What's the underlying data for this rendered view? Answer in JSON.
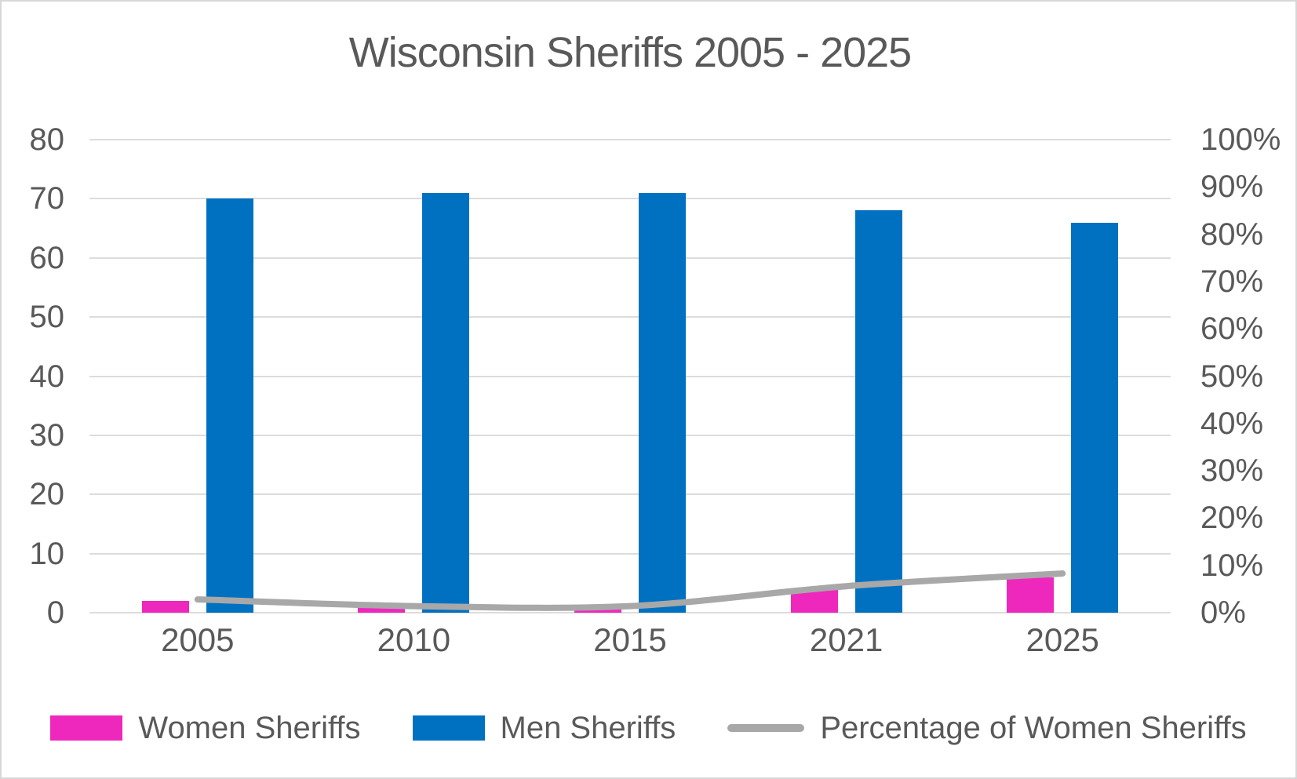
{
  "chart_data": {
    "type": "bar+line-combo",
    "title": "Wisconsin Sheriffs 2005 - 2025",
    "categories": [
      "2005",
      "2010",
      "2015",
      "2021",
      "2025"
    ],
    "series": [
      {
        "name": "Women Sheriffs",
        "type": "bar",
        "axis": "left",
        "color_key": "women_bar",
        "values": [
          2,
          1,
          1,
          4,
          6
        ]
      },
      {
        "name": "Men Sheriffs",
        "type": "bar",
        "axis": "left",
        "color_key": "men_bar",
        "values": [
          70,
          71,
          71,
          68,
          66
        ]
      },
      {
        "name": "Percentage of Women Sheriffs",
        "type": "line",
        "axis": "right",
        "color_key": "percent_line",
        "values": [
          2.8,
          1.4,
          1.4,
          5.6,
          8.3
        ]
      }
    ],
    "left_axis": {
      "min": 0,
      "max": 80,
      "tick_labels": [
        "0",
        "10",
        "20",
        "30",
        "40",
        "50",
        "60",
        "70",
        "80"
      ]
    },
    "right_axis": {
      "min": 0,
      "max": 100,
      "tick_labels": [
        "0%",
        "10%",
        "20%",
        "30%",
        "40%",
        "50%",
        "60%",
        "70%",
        "80%",
        "90%",
        "100%"
      ]
    },
    "grid": true,
    "legend_position": "bottom",
    "legend_entries": [
      "Women Sheriffs",
      "Men Sheriffs",
      "Percentage of Women Sheriffs"
    ]
  },
  "colors": {
    "women_bar": "#ee28bc",
    "men_bar": "#0071c1",
    "percent_line": "#a8a8a8",
    "gridline": "#dcdcdc",
    "text": "#595959",
    "frame_border": "#d7d7d7",
    "background": "#ffffff"
  }
}
